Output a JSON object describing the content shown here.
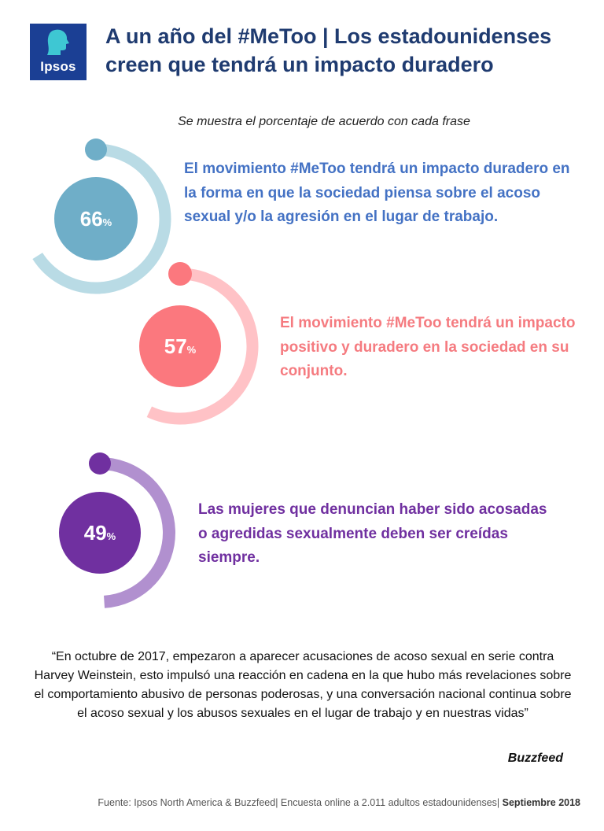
{
  "logo": {
    "text": "Ipsos"
  },
  "title": "A un año del #MeToo | Los estadounidenses creen que tendrá un impacto duradero",
  "subtitle": "Se muestra el porcentaje de acuerdo con cada frase",
  "chart_data": {
    "type": "donut",
    "unit": "%",
    "items": [
      {
        "value": 66,
        "label": "El movimiento #MeToo tendrá un impacto duradero en la forma en que la sociedad piensa sobre el acoso sexual y/o la agresión en el lugar de trabajo.",
        "arc_color": "#b9dbe5",
        "circle_color": "#6faec8",
        "text_color": "#4472c4"
      },
      {
        "value": 57,
        "label": "El movimiento #MeToo tendrá un impacto positivo y duradero en la sociedad en su conjunto.",
        "arc_color": "#ffc2c6",
        "circle_color": "#fb787e",
        "text_color": "#f57b80"
      },
      {
        "value": 49,
        "label": "Las mujeres que denuncian haber sido acosadas o agredidas sexualmente deben ser creídas siempre.",
        "arc_color": "#b190cf",
        "circle_color": "#7030a0",
        "text_color": "#7030a0"
      }
    ]
  },
  "quote": {
    "text": "“En octubre de 2017, empezaron a aparecer acusaciones de acoso sexual en serie contra Harvey Weinstein, esto impulsó una reacción en cadena en la que hubo más revelaciones sobre el comportamiento abusivo de personas poderosas, y una conversación nacional continua sobre el acoso sexual y los abusos sexuales en el lugar de trabajo y en nuestras vidas”",
    "source": "Buzzfeed"
  },
  "footer": {
    "text": "Fuente: Ipsos North America & Buzzfeed| Encuesta online a 2.011 adultos estadounidenses| ",
    "date": "Septiembre 2018"
  }
}
